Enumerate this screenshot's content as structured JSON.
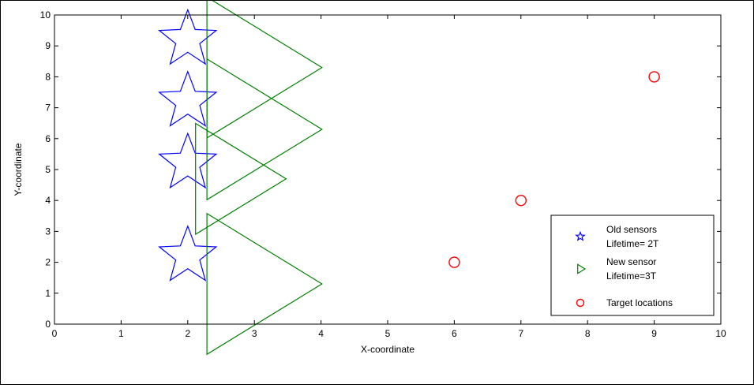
{
  "chart_data": {
    "type": "scatter",
    "title": "",
    "xlabel": "X-coordinate",
    "ylabel": "Y-coordinate",
    "xlim": [
      0,
      10
    ],
    "ylim": [
      0,
      10
    ],
    "xticks": [
      "0",
      "1",
      "2",
      "3",
      "4",
      "5",
      "6",
      "7",
      "8",
      "9",
      "10"
    ],
    "yticks": [
      "0",
      "1",
      "2",
      "3",
      "4",
      "5",
      "6",
      "7",
      "8",
      "9",
      "10"
    ],
    "grid": false,
    "legend_position": "bottom-right",
    "series": [
      {
        "name": "Old sensors\nLifetime= 2T",
        "marker": "star",
        "color": "#0000ff",
        "points": [
          [
            2,
            9.2
          ],
          [
            2,
            7.2
          ],
          [
            2,
            5.2
          ],
          [
            2,
            2.2
          ]
        ]
      },
      {
        "name": "New sensor\nLifetime=3T",
        "marker": "triangle-right",
        "color": "#008000",
        "points": [
          [
            2.9,
            8.3
          ],
          [
            2.9,
            6.3
          ],
          [
            2.6,
            4.7
          ],
          [
            2.9,
            1.3
          ]
        ]
      },
      {
        "name": "Target locations",
        "marker": "circle",
        "color": "#ff0000",
        "points": [
          [
            6,
            2
          ],
          [
            7,
            4
          ],
          [
            9,
            8
          ]
        ]
      }
    ]
  }
}
